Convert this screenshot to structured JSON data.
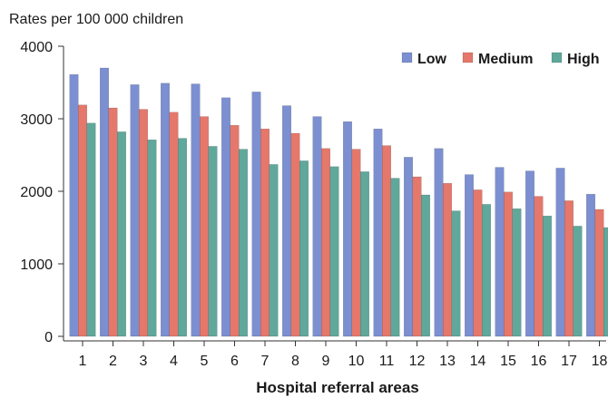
{
  "chart_data": {
    "type": "bar",
    "ylabel": "Rates per 100 000 children",
    "xlabel": "Hospital referral areas",
    "ylim": [
      0,
      4000
    ],
    "yticks": [
      0,
      1000,
      2000,
      3000,
      4000
    ],
    "legend_position": "top-right",
    "grid": false,
    "categories": [
      "1",
      "2",
      "3",
      "4",
      "5",
      "6",
      "7",
      "8",
      "9",
      "10",
      "11",
      "12",
      "13",
      "14",
      "15",
      "16",
      "17",
      "18"
    ],
    "series": [
      {
        "name": "Low",
        "color": "#7b8fd1",
        "values": [
          3610,
          3700,
          3470,
          3490,
          3480,
          3290,
          3370,
          3180,
          3030,
          2960,
          2860,
          2470,
          2590,
          2230,
          2330,
          2280,
          2320,
          1960
        ]
      },
      {
        "name": "Medium",
        "color": "#e5776b",
        "values": [
          3190,
          3150,
          3130,
          3090,
          3030,
          2910,
          2860,
          2800,
          2590,
          2580,
          2630,
          2200,
          2110,
          2020,
          1990,
          1930,
          1870,
          1750
        ]
      },
      {
        "name": "High",
        "color": "#5fa89b",
        "values": [
          2940,
          2820,
          2710,
          2730,
          2620,
          2580,
          2370,
          2420,
          2340,
          2270,
          2180,
          1950,
          1730,
          1820,
          1760,
          1660,
          1520,
          1500
        ]
      }
    ]
  }
}
